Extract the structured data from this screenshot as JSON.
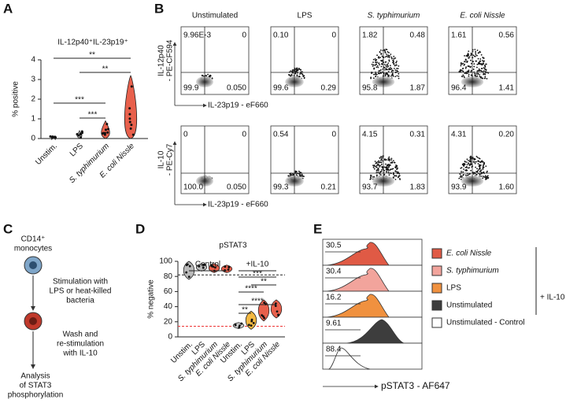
{
  "panel_a": {
    "letter": "A",
    "title": "IL-12p40⁺IL-23p19⁺",
    "y_label": "% positive",
    "yticks": [
      "0",
      "1",
      "2",
      "3",
      "4"
    ],
    "categories": [
      "Unstim.",
      "LPS",
      "S. typhimurium",
      "E. coli Nissle"
    ],
    "significance": [
      "**",
      "**",
      "***",
      "***"
    ]
  },
  "panel_b": {
    "letter": "B",
    "columns": [
      "Unstimulated",
      "LPS",
      "S. typhimurium",
      "E. coli Nissle"
    ],
    "rows": [
      {
        "y_label": [
          "IL-12p40",
          "- PE-CF594"
        ],
        "x_label": "IL-23p19 - eF660",
        "quadrants": [
          [
            "9.96E-3",
            "0",
            "99.9",
            "0.050"
          ],
          [
            "0.10",
            "0",
            "99.6",
            "0.29"
          ],
          [
            "1.82",
            "0.48",
            "95.8",
            "1.87"
          ],
          [
            "1.61",
            "0.56",
            "96.4",
            "1.41"
          ]
        ]
      },
      {
        "y_label": [
          "IL-10",
          "- PE-Cy7"
        ],
        "x_label": "IL-23p19 - eF660",
        "quadrants": [
          [
            "0",
            "0",
            "100.0",
            "0.050"
          ],
          [
            "0.54",
            "0",
            "99.3",
            "0.21"
          ],
          [
            "4.15",
            "0.31",
            "93.7",
            "1.83"
          ],
          [
            "4.31",
            "0.20",
            "93.9",
            "1.60"
          ]
        ]
      }
    ]
  },
  "panel_c": {
    "letter": "C",
    "steps": [
      [
        "CD14⁺",
        "monocytes"
      ],
      [
        "Stimulation with",
        "LPS or heat-killed",
        "bacteria"
      ],
      [
        "Wash and",
        "re-stimulation",
        "with IL-10"
      ],
      [
        "Analysis",
        "of STAT3",
        "phosphorylation"
      ]
    ]
  },
  "panel_d": {
    "letter": "D",
    "title": "pSTAT3",
    "y_label": "% negative",
    "yticks": [
      "0",
      "20",
      "40",
      "60",
      "80",
      "100"
    ],
    "groups": [
      "Control",
      "+IL-10"
    ],
    "categories": [
      "Unstim.",
      "LPS",
      "S. typhimurium",
      "E. coli Nissle"
    ],
    "significance": [
      "***",
      "**",
      "****",
      "****",
      "**"
    ]
  },
  "panel_e": {
    "letter": "E",
    "values": [
      "30.5",
      "30.4",
      "16.2",
      "9.61",
      "88.4"
    ],
    "legend": [
      "E. coli Nissle",
      "S. typhimurium",
      "LPS",
      "Unstimulated",
      "Unstimulated - Control"
    ],
    "group_label": "+ IL-10",
    "x_label": "pSTAT3 - AF647"
  }
}
